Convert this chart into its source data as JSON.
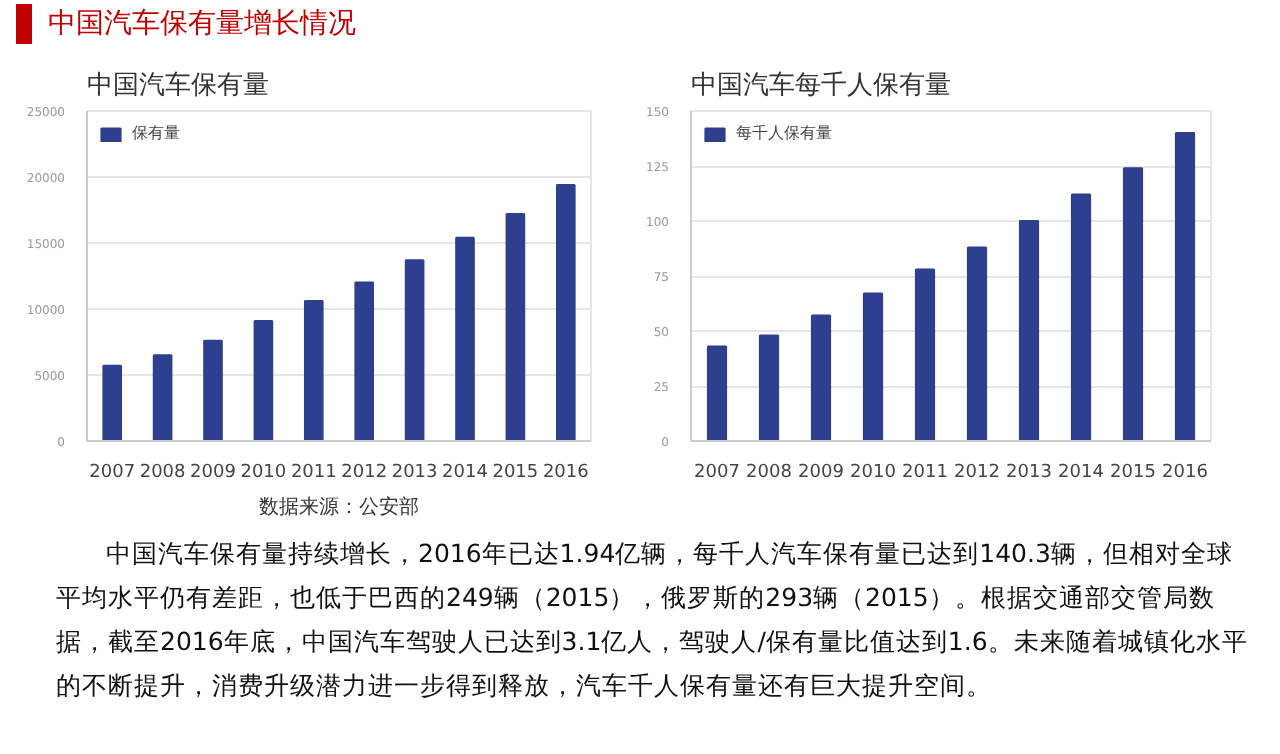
{
  "chart_data": [
    {
      "type": "other",
      "title": "中国汽车保有量增长情况"
    },
    {
      "type": "bar",
      "title": "中国汽车保有量",
      "categories": [
        "2007",
        "2008",
        "2009",
        "2010",
        "2011",
        "2012",
        "2013",
        "2014",
        "2015",
        "2016"
      ],
      "series": [
        {
          "name": "保有量",
          "color": "#2f3f8f",
          "values": [
            5700,
            6500,
            7600,
            9100,
            10600,
            12000,
            13700,
            15400,
            17200,
            19400
          ]
        }
      ],
      "ylim": [
        0,
        25000
      ],
      "yticks": [
        0,
        5000,
        10000,
        15000,
        20000,
        25000
      ],
      "grid": "y",
      "legend": "top left",
      "annotations": [
        "数据来源：公安部"
      ]
    },
    {
      "type": "bar",
      "title": "中国汽车每千人保有量",
      "categories": [
        "2007",
        "2008",
        "2009",
        "2010",
        "2011",
        "2012",
        "2013",
        "2014",
        "2015",
        "2016"
      ],
      "series": [
        {
          "name": "每千人保有量",
          "color": "#2f3f8f",
          "values": [
            43,
            48,
            57,
            67,
            78,
            88,
            100,
            112,
            124,
            140
          ]
        }
      ],
      "ylim": [
        0,
        150
      ],
      "yticks": [
        0,
        25,
        50,
        75,
        100,
        125,
        150
      ],
      "grid": "y",
      "legend": "top left"
    },
    {
      "type": "other",
      "annotations": [
        "中国汽车保有量持续增长，2016年已达1.94亿辆，每千人汽车保有量已达到140.3辆，但相对全球平均水平仍有差距，也低于巴西的249辆（2015），俄罗斯的293辆（2015）。根据交通部交管局数据，截至2016年底，中国汽车驾驶人已达到3.1亿人，驾驶人/保有量比值达到1.6。未来随着城镇化水平的不断提升，消费升级潜力进一步得到释放，汽车千人保有量还有巨大提升空间。"
      ]
    }
  ]
}
